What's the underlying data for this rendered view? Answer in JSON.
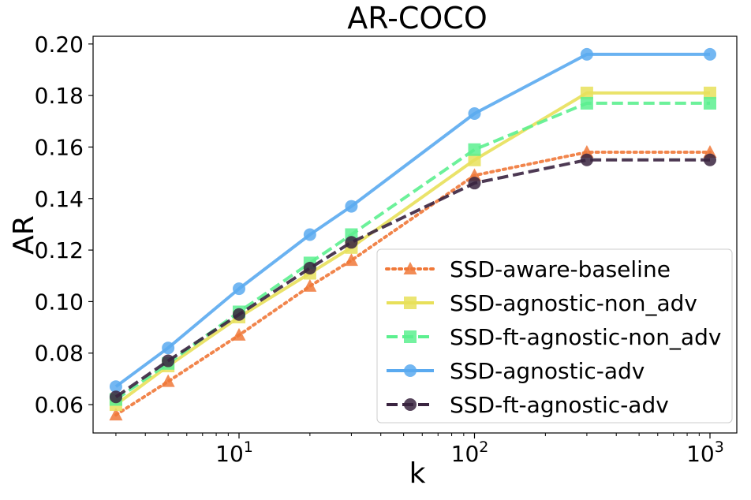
{
  "chart_data": {
    "type": "line",
    "title": "AR-COCO",
    "xlabel": "k",
    "ylabel": "AR",
    "xscale": "log",
    "xlim": [
      2.4,
      1300
    ],
    "ylim": [
      0.049,
      0.203
    ],
    "x_ticks": [
      {
        "value": 10,
        "base": "10",
        "exp": "1"
      },
      {
        "value": 100,
        "base": "10",
        "exp": "2"
      },
      {
        "value": 1000,
        "base": "10",
        "exp": "3"
      }
    ],
    "y_ticks": [
      "0.06",
      "0.08",
      "0.10",
      "0.12",
      "0.14",
      "0.16",
      "0.18",
      "0.20"
    ],
    "grid": false,
    "legend_position": "lower-right",
    "x": [
      3,
      5,
      10,
      20,
      30,
      100,
      300,
      1000
    ],
    "series": [
      {
        "name": "SSD-aware-baseline",
        "color": "#f07838",
        "dash": "dotted",
        "marker": "triangle",
        "values": [
          0.056,
          0.069,
          0.087,
          0.106,
          0.116,
          0.149,
          0.158,
          0.158
        ]
      },
      {
        "name": "SSD-agnostic-non_adv",
        "color": "#e8e05a",
        "dash": "solid",
        "marker": "square",
        "values": [
          0.06,
          0.075,
          0.094,
          0.111,
          0.121,
          0.155,
          0.181,
          0.181
        ]
      },
      {
        "name": "SSD-ft-agnostic-non_adv",
        "color": "#5cf08f",
        "dash": "dashed",
        "marker": "square",
        "values": [
          0.062,
          0.076,
          0.096,
          0.115,
          0.126,
          0.159,
          0.177,
          0.177
        ]
      },
      {
        "name": "SSD-agnostic-adv",
        "color": "#5aaaf0",
        "dash": "solid",
        "marker": "circle",
        "values": [
          0.067,
          0.082,
          0.105,
          0.126,
          0.137,
          0.173,
          0.196,
          0.196
        ]
      },
      {
        "name": "SSD-ft-agnostic-adv",
        "color": "#3a2440",
        "dash": "dashed",
        "marker": "circle",
        "values": [
          0.063,
          0.077,
          0.095,
          0.113,
          0.123,
          0.146,
          0.155,
          0.155
        ]
      }
    ]
  }
}
